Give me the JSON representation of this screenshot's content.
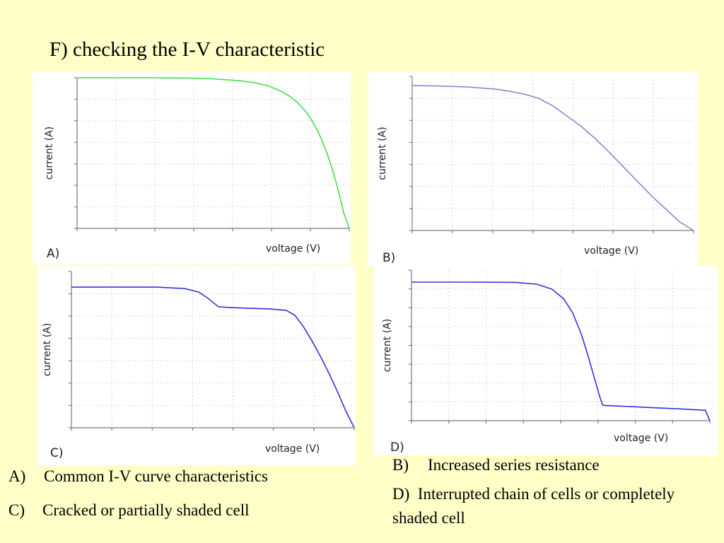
{
  "slide": {
    "title": "F) checking the I-V characteristic"
  },
  "chart_data": [
    {
      "type": "line",
      "panel_label": "A)",
      "xlabel": "voltage (V)",
      "ylabel": "current (A)",
      "grid": true,
      "color": "#44dd44",
      "series": [
        {
          "x": [
            0,
            0.1,
            0.2,
            0.3,
            0.4,
            0.5,
            0.6,
            0.65,
            0.7,
            0.75,
            0.78,
            0.81,
            0.84,
            0.86,
            0.88,
            0.9,
            0.92,
            0.94,
            0.96,
            0.98,
            1.0
          ],
          "y": [
            1.0,
            1.0,
            1.0,
            1.0,
            0.998,
            0.993,
            0.98,
            0.968,
            0.948,
            0.91,
            0.878,
            0.835,
            0.775,
            0.725,
            0.66,
            0.585,
            0.49,
            0.38,
            0.25,
            0.1,
            0.0
          ]
        }
      ]
    },
    {
      "type": "line",
      "panel_label": "B)",
      "xlabel": "voltage (V)",
      "ylabel": "current (A)",
      "grid": true,
      "color": "#8888cc",
      "series": [
        {
          "x": [
            0,
            0.1,
            0.2,
            0.3,
            0.35,
            0.4,
            0.45,
            0.5,
            0.55,
            0.6,
            0.65,
            0.7,
            0.75,
            0.8,
            0.85,
            0.9,
            0.95,
            1.0
          ],
          "y": [
            1.0,
            0.997,
            0.99,
            0.975,
            0.96,
            0.94,
            0.912,
            0.86,
            0.79,
            0.72,
            0.635,
            0.54,
            0.44,
            0.34,
            0.24,
            0.15,
            0.06,
            0.0
          ]
        }
      ]
    },
    {
      "type": "line",
      "panel_label": "C)",
      "xlabel": "voltage (V)",
      "ylabel": "current (A)",
      "grid": true,
      "color": "#3333dd",
      "series": [
        {
          "x": [
            0,
            0.15,
            0.3,
            0.4,
            0.45,
            0.48,
            0.52,
            0.56,
            0.62,
            0.7,
            0.76,
            0.79,
            0.82,
            0.85,
            0.88,
            0.91,
            0.94,
            0.97,
            1.0
          ],
          "y": [
            1.0,
            1.0,
            1.0,
            0.99,
            0.965,
            0.925,
            0.86,
            0.855,
            0.85,
            0.845,
            0.835,
            0.8,
            0.72,
            0.62,
            0.51,
            0.39,
            0.26,
            0.12,
            0.0
          ]
        }
      ]
    },
    {
      "type": "line",
      "panel_label": "D)",
      "xlabel": "voltage (V)",
      "ylabel": "current (A)",
      "grid": true,
      "color": "#3333dd",
      "series": [
        {
          "x": [
            0,
            0.2,
            0.35,
            0.42,
            0.47,
            0.51,
            0.54,
            0.57,
            0.59,
            0.61,
            0.63,
            0.64,
            0.645,
            0.7,
            0.8,
            0.9,
            0.985,
            1.0
          ],
          "y": [
            1.0,
            1.0,
            0.998,
            0.985,
            0.95,
            0.88,
            0.78,
            0.62,
            0.48,
            0.33,
            0.18,
            0.115,
            0.11,
            0.105,
            0.095,
            0.085,
            0.075,
            0.0
          ]
        }
      ]
    }
  ],
  "captions": {
    "a": {
      "key": "A)",
      "text": "Common I-V curve characteristics"
    },
    "b": {
      "key": "B)",
      "text": "Increased series resistance"
    },
    "c": {
      "key": "C)",
      "text": "Cracked or partially shaded cell"
    },
    "d": {
      "key": "D)",
      "text": "Interrupted chain of cells or completely shaded cell"
    }
  }
}
